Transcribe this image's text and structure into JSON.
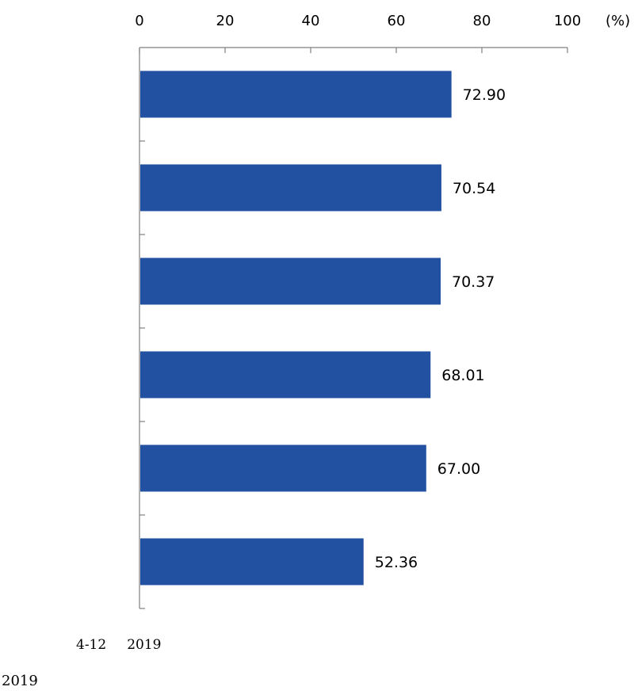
{
  "chart_data": {
    "type": "bar",
    "orientation": "horizontal",
    "categories": [
      "",
      "",
      "",
      "",
      "",
      ""
    ],
    "values": [
      72.9,
      70.54,
      70.37,
      68.01,
      67.0,
      52.36
    ],
    "value_labels": [
      "72.90",
      "70.54",
      "70.37",
      "68.01",
      "67.00",
      "52.36"
    ],
    "x_ticks": [
      "0",
      "20",
      "40",
      "60",
      "80",
      "100"
    ],
    "x_unit": "(%)",
    "xlim": [
      0,
      100
    ],
    "axis_position": "top",
    "grid": false,
    "legend": "none",
    "title": "",
    "xlabel": "",
    "ylabel": ""
  },
  "colors": {
    "bar": "#2351A1",
    "axis": "#7F7F7F"
  },
  "caption": {
    "number": "4-12",
    "year": "2019"
  },
  "source": {
    "text": "2019"
  }
}
